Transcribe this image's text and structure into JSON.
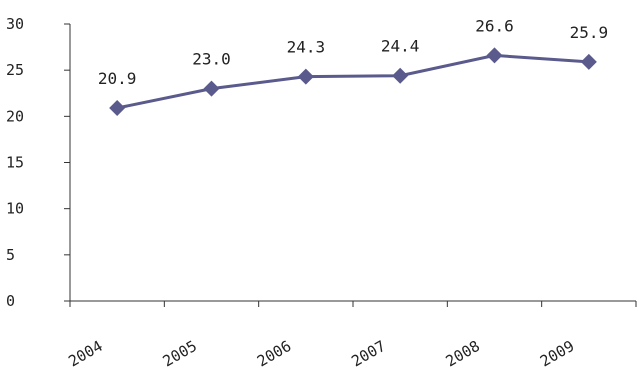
{
  "chart_data": {
    "type": "line",
    "categories": [
      "2004",
      "2005",
      "2006",
      "2007",
      "2008",
      "2009"
    ],
    "series": [
      {
        "values": [
          20.9,
          23.0,
          24.3,
          24.4,
          26.6,
          25.9
        ],
        "color": "#5a5a8c"
      }
    ],
    "data_labels": [
      "20.9",
      "23.0",
      "24.3",
      "24.4",
      "26.6",
      "25.9"
    ],
    "yticks": [
      "0",
      "5",
      "10",
      "15",
      "20",
      "25",
      "30"
    ],
    "ylim": [
      0,
      30
    ],
    "marker": "diamond",
    "grid": false,
    "title": "",
    "xlabel": "",
    "ylabel": ""
  }
}
